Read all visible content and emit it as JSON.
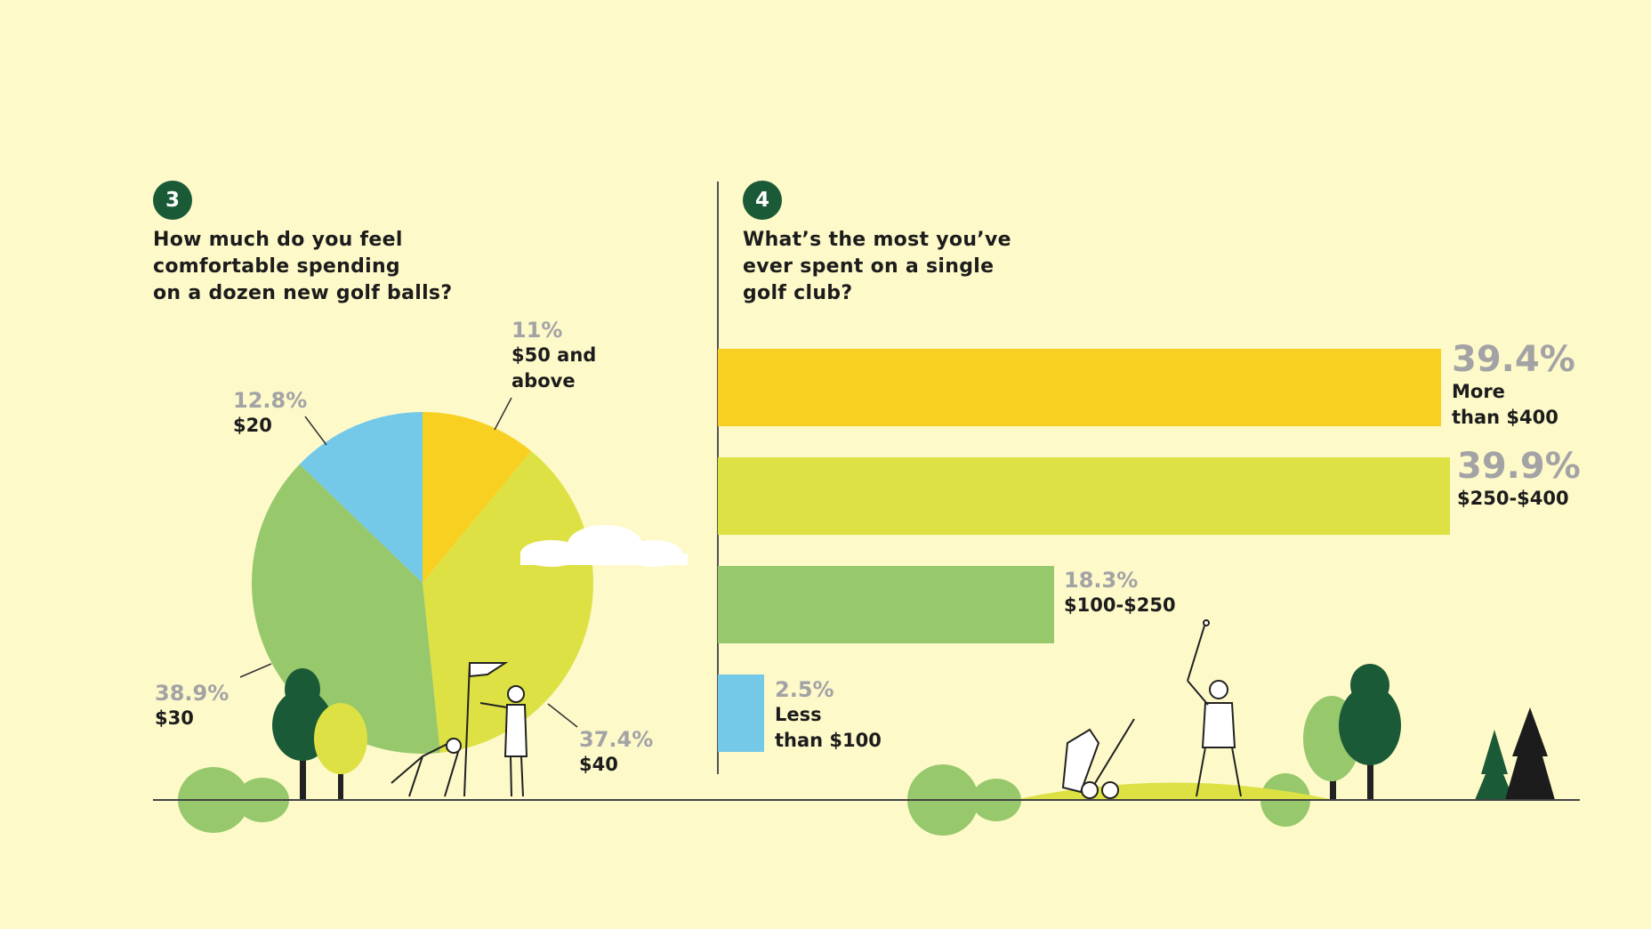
{
  "colors": {
    "background": "#fdf9c9",
    "badge": "#1b5a36",
    "yellow": "#f8d022",
    "yellow_green": "#dde143",
    "green": "#97c86b",
    "blue": "#74c9e9",
    "percent_text": "#a3a3a6"
  },
  "chart_data": [
    {
      "type": "pie",
      "badge": "3",
      "title_lines": [
        "How much do you feel",
        "comfortable spending",
        "on a dozen new golf balls?"
      ],
      "slices": [
        {
          "label": "$50 and above",
          "label_lines": [
            "$50 and",
            "above"
          ],
          "value": 11,
          "value_text": "11%",
          "color": "#f8d022"
        },
        {
          "label": "$40",
          "label_lines": [
            "$40"
          ],
          "value": 37.4,
          "value_text": "37.4%",
          "color": "#dde143"
        },
        {
          "label": "$30",
          "label_lines": [
            "$30"
          ],
          "value": 38.9,
          "value_text": "38.9%",
          "color": "#97c86b"
        },
        {
          "label": "$20",
          "label_lines": [
            "$20"
          ],
          "value": 12.8,
          "value_text": "12.8%",
          "color": "#74c9e9"
        }
      ]
    },
    {
      "type": "bar",
      "orientation": "horizontal",
      "badge": "4",
      "title_lines": [
        "What’s the most you’ve",
        "ever spent on a single",
        "golf club?"
      ],
      "bars": [
        {
          "label_lines": [
            "More",
            "than $400"
          ],
          "value": 39.4,
          "value_text": "39.4%",
          "color": "#f8d022"
        },
        {
          "label_lines": [
            "$250-$400"
          ],
          "value": 39.9,
          "value_text": "39.9%",
          "color": "#dde143"
        },
        {
          "label_lines": [
            "$100-$250"
          ],
          "value": 18.3,
          "value_text": "18.3%",
          "color": "#97c86b"
        },
        {
          "label_lines": [
            "Less",
            "than $100"
          ],
          "value": 2.5,
          "value_text": "2.5%",
          "color": "#74c9e9"
        }
      ],
      "unit": "%"
    }
  ]
}
